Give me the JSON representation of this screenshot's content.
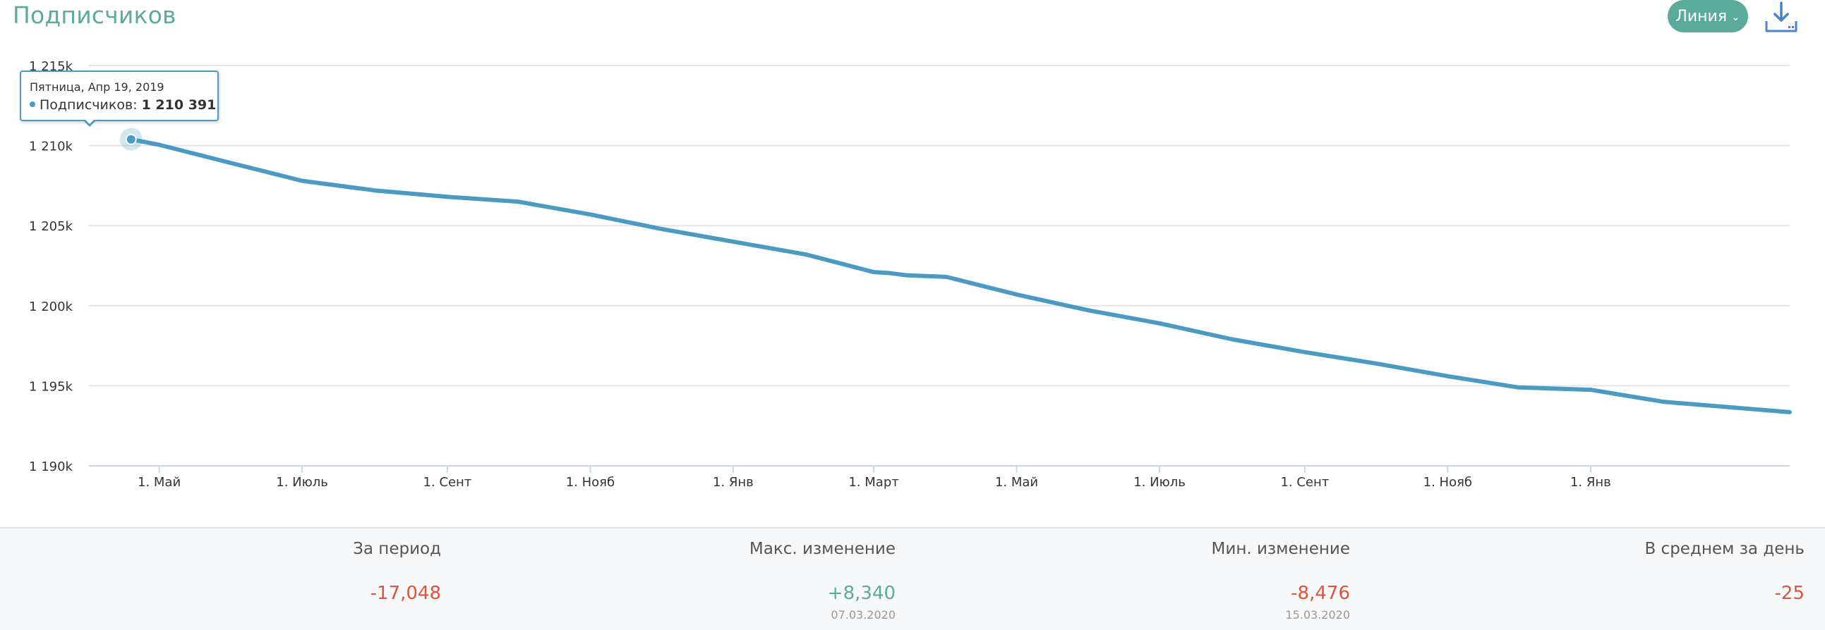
{
  "header": {
    "title": "Подписчиков",
    "type_toggle_label": "Линия",
    "icons": {
      "chevron": "chevron-down-icon",
      "download": "download-icon"
    }
  },
  "colors": {
    "accent": "#5bab9b",
    "series": "#4a9bc4",
    "negative": "#e0533a",
    "positive": "#5bab9b"
  },
  "chart_data": {
    "type": "line",
    "title": "Подписчиков",
    "xlabel": "",
    "ylabel": "",
    "ylim": [
      1190000,
      1215000
    ],
    "y_ticks": [
      1190000,
      1195000,
      1200000,
      1205000,
      1210000,
      1215000
    ],
    "y_tick_labels": [
      "1 190k",
      "1 195k",
      "1 200k",
      "1 205k",
      "1 210k",
      "1 215k"
    ],
    "x_range": [
      "2019-04-19",
      "2021-03-27"
    ],
    "x_ticks": [
      {
        "date": "2019-05-01",
        "label": "1. Май"
      },
      {
        "date": "2019-07-01",
        "label": "1. Июль"
      },
      {
        "date": "2019-09-01",
        "label": "1. Сент"
      },
      {
        "date": "2019-11-01",
        "label": "1. Нояб"
      },
      {
        "date": "2020-01-01",
        "label": "1. Янв"
      },
      {
        "date": "2020-03-01",
        "label": "1. Март"
      },
      {
        "date": "2020-05-01",
        "label": "1. Май"
      },
      {
        "date": "2020-07-01",
        "label": "1. Июль"
      },
      {
        "date": "2020-09-01",
        "label": "1. Сент"
      },
      {
        "date": "2020-11-01",
        "label": "1. Нояб"
      },
      {
        "date": "2021-01-01",
        "label": "1. Янв"
      }
    ],
    "grid": true,
    "legend": "none",
    "series": [
      {
        "points": [
          [
            "2019-04-19",
            1210391
          ],
          [
            "2019-05-01",
            1210050
          ],
          [
            "2019-06-01",
            1208900
          ],
          [
            "2019-07-01",
            1207800
          ],
          [
            "2019-08-01",
            1207200
          ],
          [
            "2019-09-01",
            1206800
          ],
          [
            "2019-10-01",
            1206500
          ],
          [
            "2019-11-01",
            1205700
          ],
          [
            "2019-12-01",
            1204800
          ],
          [
            "2020-01-01",
            1204000
          ],
          [
            "2020-02-01",
            1203200
          ],
          [
            "2020-03-01",
            1202100
          ],
          [
            "2020-03-07",
            1202050
          ],
          [
            "2020-03-15",
            1201900
          ],
          [
            "2020-04-01",
            1201800
          ],
          [
            "2020-05-01",
            1200700
          ],
          [
            "2020-06-01",
            1199700
          ],
          [
            "2020-07-01",
            1198900
          ],
          [
            "2020-08-01",
            1197900
          ],
          [
            "2020-09-01",
            1197100
          ],
          [
            "2020-10-01",
            1196400
          ],
          [
            "2020-11-01",
            1195600
          ],
          [
            "2020-12-01",
            1194900
          ],
          [
            "2021-01-01",
            1194750
          ],
          [
            "2021-02-01",
            1194000
          ],
          [
            "2021-03-27",
            1193350
          ]
        ]
      }
    ],
    "tooltip": {
      "date_text": "Пятница, Апр 19, 2019",
      "series_label": "Подписчиков",
      "value_text": "1 210 391",
      "point": [
        "2019-04-19",
        1210391
      ]
    }
  },
  "stats": [
    {
      "label": "За период",
      "value": "-17,048",
      "date": "",
      "tone": "negative"
    },
    {
      "label": "Макс. изменение",
      "value": "+8,340",
      "date": "07.03.2020",
      "tone": "positive"
    },
    {
      "label": "Мин. изменение",
      "value": "-8,476",
      "date": "15.03.2020",
      "tone": "negative"
    },
    {
      "label": "В среднем за день",
      "value": "-25",
      "date": "",
      "tone": "negative"
    }
  ]
}
